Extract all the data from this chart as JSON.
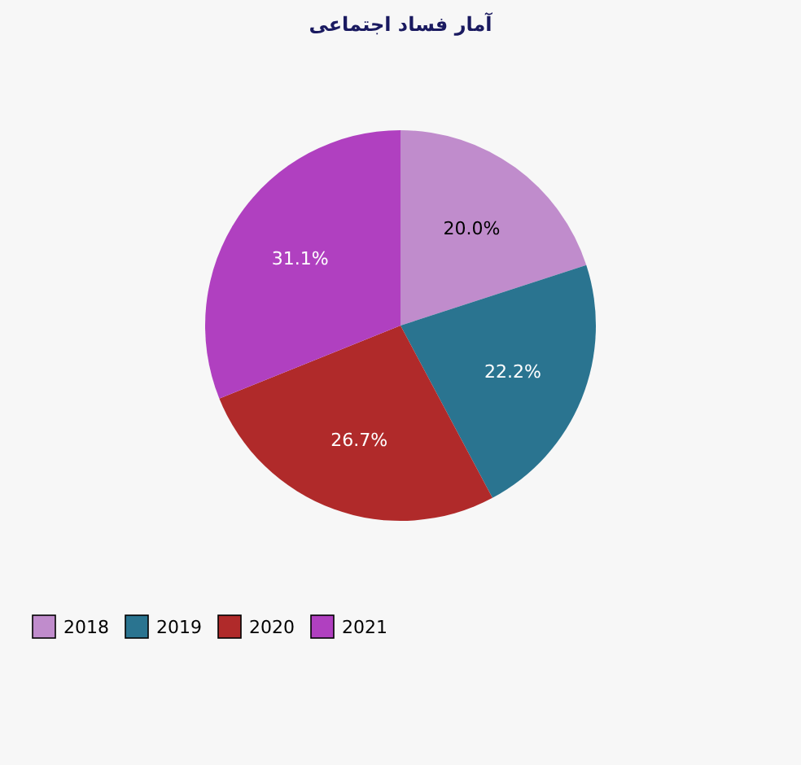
{
  "chart_data": {
    "type": "pie",
    "title": "آمار فساد اجتماعی",
    "categories": [
      "2018",
      "2019",
      "2020",
      "2021"
    ],
    "values": [
      20.0,
      22.2,
      26.7,
      31.1
    ],
    "value_labels": [
      "20.0%",
      "22.2%",
      "26.7%",
      "31.1%"
    ],
    "colors": [
      "#c08ccc",
      "#2a7490",
      "#b02a2a",
      "#b040c0"
    ],
    "legend": "bottom left"
  }
}
